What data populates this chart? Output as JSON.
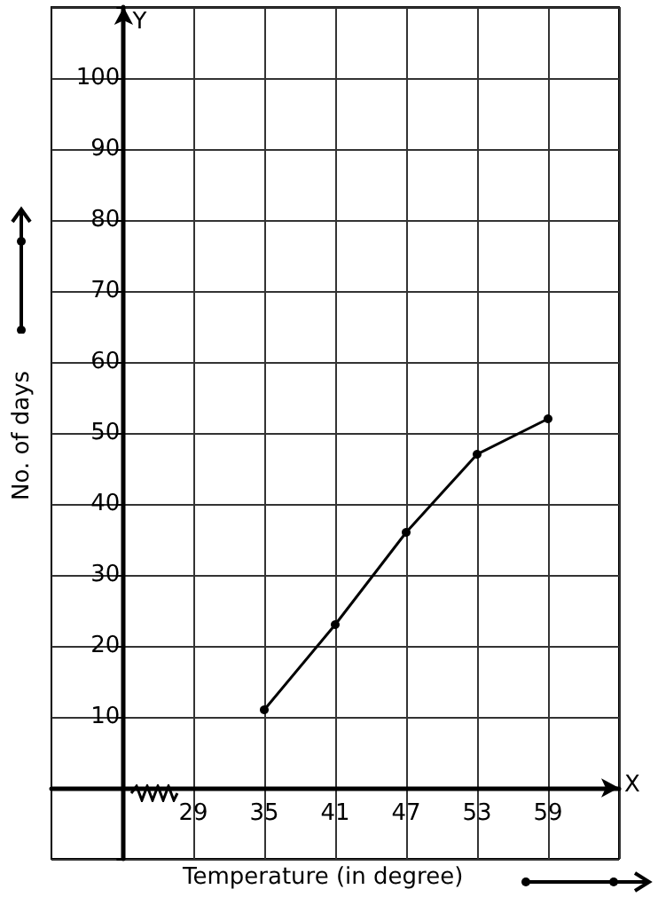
{
  "chart_data": {
    "type": "line",
    "xlabel": "Temperature (in degree)",
    "ylabel": "No. of days",
    "annotations": [
      "X",
      "Y"
    ],
    "x": [
      35,
      41,
      47,
      53,
      59
    ],
    "series": [
      {
        "color": "#000000",
        "values": [
          11,
          23,
          36,
          47,
          52
        ]
      }
    ],
    "xlim": [
      17,
      65
    ],
    "xticks": [
      {
        "value": 23,
        "label": null
      },
      29,
      35,
      41,
      47,
      53,
      59,
      {
        "value": 65,
        "label": null
      }
    ],
    "ylim": [
      -10,
      110
    ],
    "yticks": [
      {
        "value": -10,
        "label": null
      },
      {
        "value": 0,
        "label": null
      },
      10,
      20,
      30,
      40,
      50,
      60,
      70,
      80,
      90,
      100,
      {
        "value": 110,
        "label": null
      }
    ],
    "grid": true,
    "marker": "circle",
    "line_style": "solid"
  }
}
